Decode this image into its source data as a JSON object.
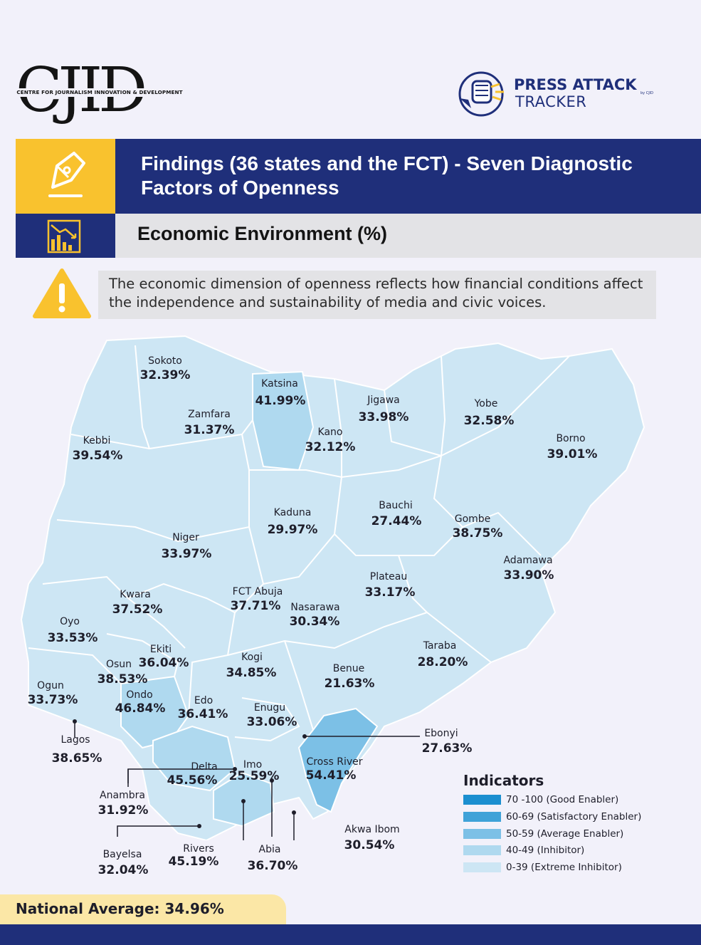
{
  "header": {
    "cjid_logo_text": "CJID",
    "cjid_tagline": "CENTRE FOR JOURNALISM INNOVATION & DEVELOPMENT",
    "tracker_title": "PRESS ATTACK",
    "tracker_subtitle": "TRACKER",
    "tracker_by": "by CJID"
  },
  "title": {
    "main": "Findings (36 states and the FCT) - Seven Diagnostic Factors of Openness",
    "sub": "Economic Environment (%)",
    "icons": {
      "title": "pen-nib-icon",
      "sub": "declining-chart-icon",
      "note": "warning-icon"
    }
  },
  "note": "The economic dimension of openness reflects how financial conditions affect the independence and sustainability of media and civic voices.",
  "states": [
    {
      "name": "Sokoto",
      "value": "32.39%"
    },
    {
      "name": "Katsina",
      "value": "41.99%"
    },
    {
      "name": "Jigawa",
      "value": "33.98%"
    },
    {
      "name": "Yobe",
      "value": "32.58%"
    },
    {
      "name": "Zamfara",
      "value": "31.37%"
    },
    {
      "name": "Kano",
      "value": "32.12%"
    },
    {
      "name": "Kebbi",
      "value": "39.54%"
    },
    {
      "name": "Borno",
      "value": "39.01%"
    },
    {
      "name": "Kaduna",
      "value": "29.97%"
    },
    {
      "name": "Bauchi",
      "value": "27.44%"
    },
    {
      "name": "Gombe",
      "value": "38.75%"
    },
    {
      "name": "Niger",
      "value": "33.97%"
    },
    {
      "name": "Adamawa",
      "value": "33.90%"
    },
    {
      "name": "Plateau",
      "value": "33.17%"
    },
    {
      "name": "Kwara",
      "value": "37.52%"
    },
    {
      "name": "FCT Abuja",
      "value": "37.71%"
    },
    {
      "name": "Nasarawa",
      "value": "30.34%"
    },
    {
      "name": "Oyo",
      "value": "33.53%"
    },
    {
      "name": "Ekiti",
      "value": "36.04%"
    },
    {
      "name": "Taraba",
      "value": "28.20%"
    },
    {
      "name": "Osun",
      "value": "38.53%"
    },
    {
      "name": "Kogi",
      "value": "34.85%"
    },
    {
      "name": "Benue",
      "value": "21.63%"
    },
    {
      "name": "Ogun",
      "value": "33.73%"
    },
    {
      "name": "Ondo",
      "value": "46.84%"
    },
    {
      "name": "Edo",
      "value": "36.41%"
    },
    {
      "name": "Enugu",
      "value": "33.06%"
    },
    {
      "name": "Lagos",
      "value": "38.65%"
    },
    {
      "name": "Ebonyi",
      "value": "27.63%"
    },
    {
      "name": "Cross River",
      "value": "54.41%"
    },
    {
      "name": "Delta",
      "value": "45.56%"
    },
    {
      "name": "Imo",
      "value": "25.59%"
    },
    {
      "name": "Anambra",
      "value": "31.92%"
    },
    {
      "name": "Akwa Ibom",
      "value": "30.54%"
    },
    {
      "name": "Bayelsa",
      "value": "32.04%"
    },
    {
      "name": "Rivers",
      "value": "45.19%"
    },
    {
      "name": "Abia",
      "value": "36.70%"
    }
  ],
  "legend": {
    "title": "Indicators",
    "items": [
      {
        "label": "70 -100 (Good Enabler)",
        "color": "#1b8fd0"
      },
      {
        "label": "60-69 (Satisfactory Enabler)",
        "color": "#3fa2d8"
      },
      {
        "label": "50-59 (Average Enabler)",
        "color": "#7cc0e6"
      },
      {
        "label": "40-49 (Inhibitor)",
        "color": "#afd9ef"
      },
      {
        "label": "0-39 (Extreme Inhibitor)",
        "color": "#cde6f4"
      }
    ]
  },
  "footer": {
    "national_average": "National Average: 34.96%"
  },
  "colors": {
    "navy": "#1f2f7a",
    "yellow": "#f9c22e",
    "extreme_inhibitor": "#cde6f4",
    "inhibitor": "#afd9ef",
    "average_enabler": "#7cc0e6"
  }
}
